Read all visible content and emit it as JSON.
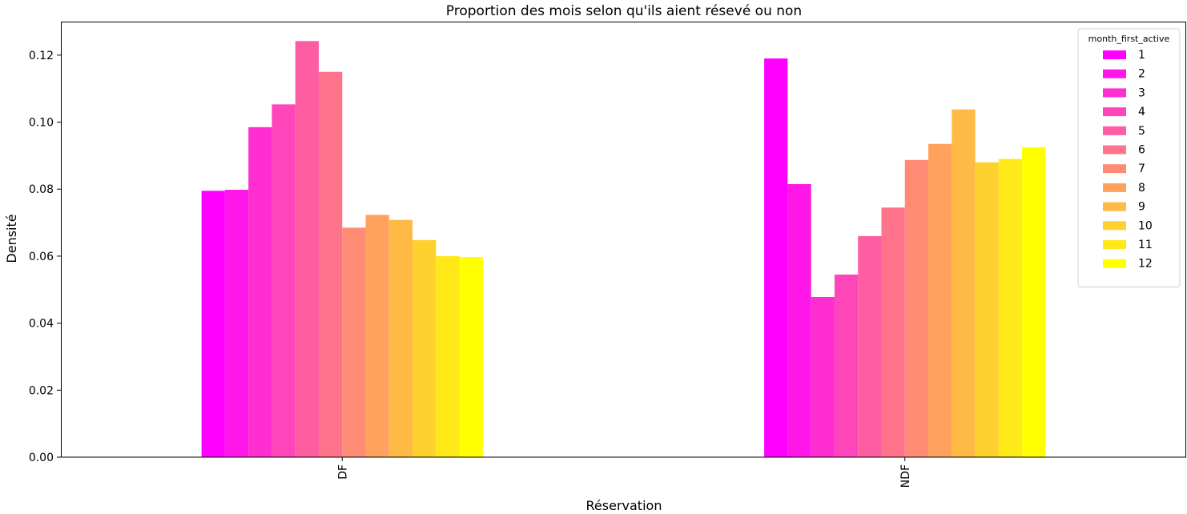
{
  "chart_data": {
    "type": "bar",
    "title": "Proportion des mois selon qu'ils aient résevé ou non",
    "xlabel": "Réservation",
    "ylabel": "Densité",
    "categories": [
      "DF",
      "NDF"
    ],
    "ylim": [
      0,
      0.13
    ],
    "yticks": [
      "0.00",
      "0.02",
      "0.04",
      "0.06",
      "0.08",
      "0.10",
      "0.12"
    ],
    "grid": false,
    "legend": {
      "title": "month_first_active",
      "placement": "top-right"
    },
    "series": [
      {
        "name": "1",
        "color": "#ff00ff",
        "values": [
          0.0795,
          0.119
        ]
      },
      {
        "name": "2",
        "color": "#ff17e8",
        "values": [
          0.0798,
          0.0815
        ]
      },
      {
        "name": "3",
        "color": "#ff2ed1",
        "values": [
          0.0985,
          0.0478
        ]
      },
      {
        "name": "4",
        "color": "#ff45ba",
        "values": [
          0.1053,
          0.0545
        ]
      },
      {
        "name": "5",
        "color": "#ff5da2",
        "values": [
          0.1242,
          0.066
        ]
      },
      {
        "name": "6",
        "color": "#ff748b",
        "values": [
          0.115,
          0.0745
        ]
      },
      {
        "name": "7",
        "color": "#ff8b74",
        "values": [
          0.0685,
          0.0887
        ]
      },
      {
        "name": "8",
        "color": "#ffa25d",
        "values": [
          0.0723,
          0.0935
        ]
      },
      {
        "name": "9",
        "color": "#ffba45",
        "values": [
          0.0708,
          0.1038
        ]
      },
      {
        "name": "10",
        "color": "#ffd12e",
        "values": [
          0.0648,
          0.088
        ]
      },
      {
        "name": "11",
        "color": "#ffe817",
        "values": [
          0.06,
          0.089
        ]
      },
      {
        "name": "12",
        "color": "#ffff00",
        "values": [
          0.0597,
          0.0925
        ]
      }
    ]
  }
}
